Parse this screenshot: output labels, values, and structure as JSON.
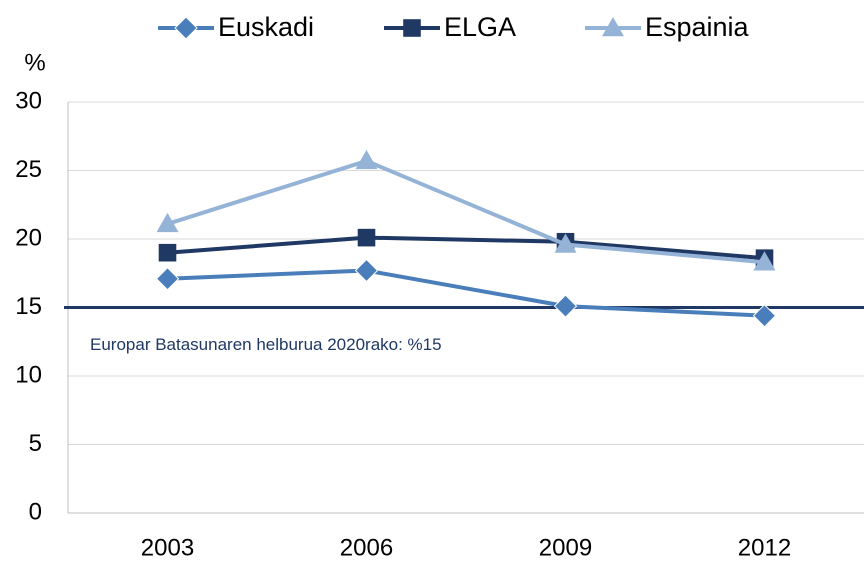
{
  "chart_data": {
    "type": "line",
    "y_label": "%",
    "categories": [
      "2003",
      "2006",
      "2009",
      "2012"
    ],
    "series": [
      {
        "name": "Euskadi",
        "color": "#4a7ebb",
        "marker": "diamond",
        "values": [
          17.1,
          17.7,
          15.1,
          14.4
        ]
      },
      {
        "name": "ELGA",
        "color": "#1f3864",
        "marker": "square",
        "values": [
          19.0,
          20.1,
          19.8,
          18.6
        ]
      },
      {
        "name": "Espainia",
        "color": "#95b3d7",
        "marker": "triangle",
        "values": [
          21.1,
          25.7,
          19.6,
          18.3
        ]
      }
    ],
    "reference_lines": [
      {
        "value": 15,
        "label": "Europar Batasunaren helburua 2020rako: %15",
        "color": "#1f3864"
      }
    ],
    "ylim": [
      0,
      30
    ],
    "yticks": [
      0,
      5,
      10,
      15,
      20,
      25,
      30
    ],
    "grid": true,
    "legend": "top"
  }
}
